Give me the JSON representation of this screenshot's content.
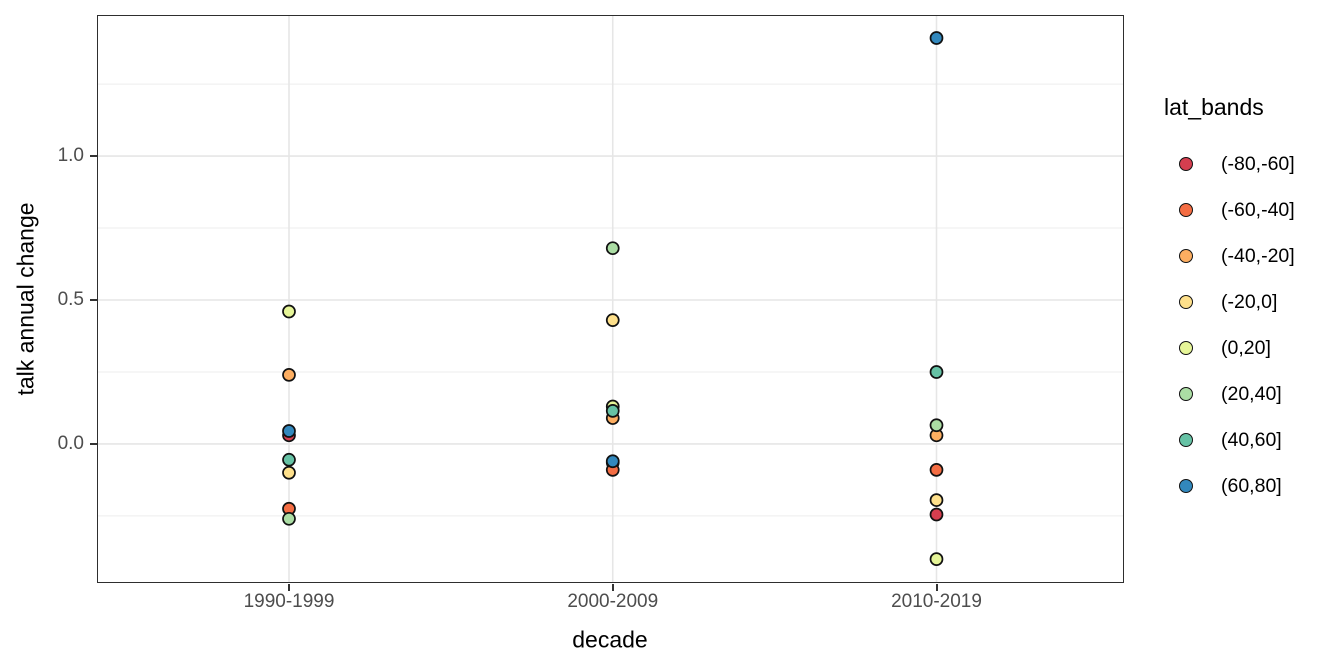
{
  "chart_data": {
    "type": "scatter",
    "title": "",
    "xlabel": "decade",
    "ylabel": "talk annual change",
    "categories": [
      "1990-1999",
      "2000-2009",
      "2010-2019"
    ],
    "ylim": [
      -0.483,
      1.49
    ],
    "yticks_major": [
      0.0,
      0.5,
      1.0
    ],
    "ytick_labels": [
      "0.0",
      "0.5",
      "1.0"
    ],
    "yticks_minor": [
      -0.25,
      0.25,
      0.75,
      1.25
    ],
    "grid": "major-and-minor, light gray on white, panel framed (ggplot theme_bw)",
    "legend_title": "lat_bands",
    "legend_position": "right",
    "point_style": "filled circle with black outline",
    "series": [
      {
        "name": "(-80,-60]",
        "color": "#D53E4F",
        "values": [
          0.03,
          -0.065,
          -0.245
        ]
      },
      {
        "name": "(-60,-40]",
        "color": "#F46D43",
        "values": [
          -0.225,
          -0.09,
          -0.09
        ]
      },
      {
        "name": "(-40,-20]",
        "color": "#FDAE61",
        "values": [
          0.24,
          0.09,
          0.03
        ]
      },
      {
        "name": "(-20,0]",
        "color": "#FEE08B",
        "values": [
          -0.1,
          0.43,
          -0.195
        ]
      },
      {
        "name": "(0,20]",
        "color": "#E6F598",
        "values": [
          0.46,
          0.13,
          -0.4
        ]
      },
      {
        "name": "(20,40]",
        "color": "#ABDDA4",
        "values": [
          -0.26,
          0.68,
          0.065
        ]
      },
      {
        "name": "(40,60]",
        "color": "#66C2A5",
        "values": [
          -0.055,
          0.115,
          0.25
        ]
      },
      {
        "name": "(60,80]",
        "color": "#3288BD",
        "values": [
          0.045,
          -0.06,
          1.41
        ]
      }
    ],
    "colors": {
      "grid_major": "#e6e6e6",
      "grid_minor": "#ededed",
      "panel_border": "#2e2e2e",
      "tick_text": "#4d4d4d",
      "axis_title_text": "#000000",
      "point_outline": "#111111"
    }
  }
}
